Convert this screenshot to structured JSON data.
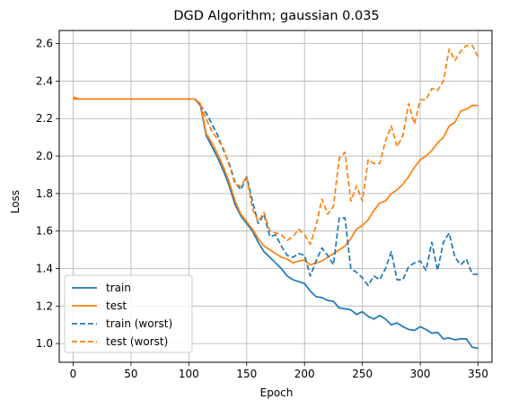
{
  "chart_data": {
    "type": "line",
    "title": "DGD Algorithm; gaussian 0.035",
    "xlabel": "Epoch",
    "ylabel": "Loss",
    "xlim": [
      -12,
      362
    ],
    "ylim": [
      0.9,
      2.67
    ],
    "xticks": [
      0,
      50,
      100,
      150,
      200,
      250,
      300,
      350
    ],
    "yticks": [
      1.0,
      1.2,
      1.4,
      1.6,
      1.8,
      2.0,
      2.2,
      2.4,
      2.6
    ],
    "ytick_labels": [
      "1.0",
      "1.2",
      "1.4",
      "1.6",
      "1.8",
      "2.0",
      "2.2",
      "2.4",
      "2.6"
    ],
    "grid": true,
    "legend_position": "lower-left",
    "series": [
      {
        "name": "train",
        "color": "#1f77b4",
        "dashed": false,
        "x": [
          0,
          5,
          10,
          20,
          30,
          40,
          50,
          60,
          70,
          80,
          90,
          100,
          105,
          110,
          115,
          120,
          125,
          130,
          135,
          140,
          145,
          150,
          155,
          160,
          165,
          170,
          175,
          180,
          185,
          190,
          195,
          200,
          205,
          210,
          215,
          220,
          225,
          230,
          235,
          240,
          245,
          250,
          255,
          260,
          265,
          270,
          275,
          280,
          285,
          290,
          295,
          300,
          305,
          310,
          315,
          320,
          325,
          330,
          335,
          340,
          345,
          350
        ],
        "y": [
          2.305,
          2.305,
          2.305,
          2.305,
          2.305,
          2.305,
          2.305,
          2.305,
          2.305,
          2.305,
          2.305,
          2.305,
          2.305,
          2.27,
          2.11,
          2.05,
          1.99,
          1.92,
          1.84,
          1.74,
          1.68,
          1.64,
          1.6,
          1.54,
          1.49,
          1.46,
          1.43,
          1.4,
          1.36,
          1.34,
          1.33,
          1.32,
          1.28,
          1.25,
          1.245,
          1.23,
          1.225,
          1.19,
          1.185,
          1.18,
          1.155,
          1.17,
          1.145,
          1.13,
          1.15,
          1.13,
          1.1,
          1.11,
          1.09,
          1.075,
          1.07,
          1.09,
          1.075,
          1.055,
          1.06,
          1.025,
          1.03,
          1.02,
          1.025,
          1.025,
          0.98,
          0.975
        ]
      },
      {
        "name": "test",
        "color": "#ff7f0e",
        "dashed": false,
        "x": [
          0,
          5,
          10,
          20,
          30,
          40,
          50,
          60,
          70,
          80,
          90,
          100,
          105,
          110,
          115,
          120,
          125,
          130,
          135,
          140,
          145,
          150,
          155,
          160,
          165,
          170,
          175,
          180,
          185,
          190,
          195,
          200,
          205,
          210,
          215,
          220,
          225,
          230,
          235,
          240,
          245,
          250,
          255,
          260,
          265,
          270,
          275,
          280,
          285,
          290,
          295,
          300,
          305,
          310,
          315,
          320,
          325,
          330,
          335,
          340,
          345,
          350
        ],
        "y": [
          2.315,
          2.305,
          2.305,
          2.305,
          2.305,
          2.305,
          2.305,
          2.305,
          2.305,
          2.305,
          2.305,
          2.305,
          2.305,
          2.28,
          2.12,
          2.07,
          2.01,
          1.94,
          1.86,
          1.76,
          1.69,
          1.65,
          1.61,
          1.56,
          1.52,
          1.5,
          1.48,
          1.46,
          1.45,
          1.43,
          1.44,
          1.445,
          1.42,
          1.43,
          1.44,
          1.46,
          1.48,
          1.5,
          1.52,
          1.56,
          1.61,
          1.63,
          1.66,
          1.71,
          1.75,
          1.76,
          1.8,
          1.82,
          1.85,
          1.89,
          1.94,
          1.98,
          2.0,
          2.03,
          2.07,
          2.1,
          2.16,
          2.18,
          2.24,
          2.25,
          2.27,
          2.27
        ]
      },
      {
        "name": "train (worst)",
        "color": "#1f77b4",
        "dashed": true,
        "x": [
          0,
          5,
          10,
          20,
          30,
          40,
          50,
          60,
          70,
          80,
          90,
          100,
          105,
          110,
          115,
          120,
          125,
          130,
          135,
          140,
          145,
          150,
          155,
          160,
          165,
          170,
          175,
          180,
          185,
          190,
          195,
          200,
          205,
          210,
          215,
          220,
          225,
          230,
          235,
          240,
          245,
          250,
          255,
          260,
          265,
          270,
          275,
          280,
          285,
          290,
          295,
          300,
          305,
          310,
          315,
          320,
          325,
          330,
          335,
          340,
          345,
          350
        ],
        "y": [
          2.305,
          2.305,
          2.305,
          2.305,
          2.305,
          2.305,
          2.305,
          2.305,
          2.305,
          2.305,
          2.305,
          2.305,
          2.305,
          2.27,
          2.23,
          2.17,
          2.11,
          2.03,
          1.96,
          1.86,
          1.82,
          1.89,
          1.76,
          1.64,
          1.69,
          1.57,
          1.58,
          1.52,
          1.47,
          1.46,
          1.48,
          1.47,
          1.36,
          1.44,
          1.51,
          1.47,
          1.42,
          1.67,
          1.67,
          1.4,
          1.38,
          1.35,
          1.31,
          1.36,
          1.34,
          1.4,
          1.49,
          1.34,
          1.34,
          1.41,
          1.43,
          1.44,
          1.39,
          1.54,
          1.39,
          1.54,
          1.59,
          1.46,
          1.42,
          1.45,
          1.37,
          1.37
        ]
      },
      {
        "name": "test (worst)",
        "color": "#ff7f0e",
        "dashed": true,
        "x": [
          0,
          5,
          10,
          20,
          30,
          40,
          50,
          60,
          70,
          80,
          90,
          100,
          105,
          110,
          115,
          120,
          125,
          130,
          135,
          140,
          145,
          150,
          155,
          160,
          165,
          170,
          175,
          180,
          185,
          190,
          195,
          200,
          205,
          210,
          215,
          220,
          225,
          230,
          235,
          240,
          245,
          250,
          255,
          260,
          265,
          270,
          275,
          280,
          285,
          290,
          295,
          300,
          305,
          310,
          315,
          320,
          325,
          330,
          335,
          340,
          345,
          350
        ],
        "y": [
          2.305,
          2.305,
          2.305,
          2.305,
          2.305,
          2.305,
          2.305,
          2.305,
          2.305,
          2.305,
          2.305,
          2.305,
          2.305,
          2.27,
          2.2,
          2.13,
          2.09,
          2.04,
          1.95,
          1.85,
          1.84,
          1.89,
          1.72,
          1.65,
          1.7,
          1.6,
          1.59,
          1.58,
          1.55,
          1.57,
          1.61,
          1.58,
          1.53,
          1.63,
          1.77,
          1.69,
          1.73,
          1.99,
          2.02,
          1.76,
          1.84,
          1.76,
          1.98,
          1.96,
          1.96,
          2.08,
          2.16,
          2.05,
          2.11,
          2.28,
          2.17,
          2.3,
          2.3,
          2.36,
          2.35,
          2.4,
          2.57,
          2.51,
          2.56,
          2.59,
          2.59,
          2.53
        ]
      }
    ]
  }
}
